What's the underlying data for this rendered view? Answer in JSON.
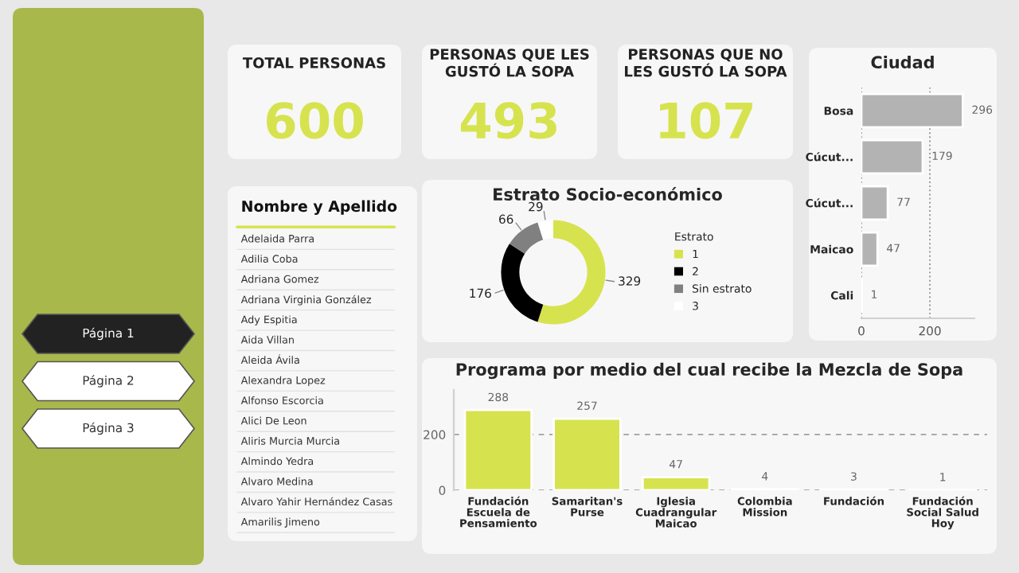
{
  "chart_data": [
    {
      "type": "other",
      "annotations": [
        "Página 1",
        "Página 2",
        "Página 3"
      ]
    },
    {
      "type": "other",
      "title": "TOTAL PERSONAS",
      "annotations": [
        "600"
      ]
    },
    {
      "type": "other",
      "title": "PERSONAS QUE LES GUSTÓ LA SOPA",
      "annotations": [
        "493"
      ]
    },
    {
      "type": "other",
      "title": "PERSONAS QUE NO LES GUSTÓ LA SOPA",
      "annotations": [
        "107"
      ]
    },
    {
      "type": "bar",
      "orientation": "horizontal",
      "title": "Ciudad",
      "categories": [
        "Bosa",
        "Cúcut...",
        "Cúcut...",
        "Maicao",
        "Cali"
      ],
      "values": [
        296,
        179,
        77,
        47,
        1
      ],
      "color": "#b3b3b3",
      "xlim": [
        0,
        330
      ],
      "xticks": [
        0,
        200
      ],
      "grid": "x",
      "data_labels": true
    },
    {
      "type": "other",
      "title": "Nombre y Apellido",
      "annotations": [
        "Adelaida Parra",
        "Adilia Coba",
        "Adriana Gomez",
        "Adriana Virginia González",
        "Ady Espitia",
        "Aida Villan",
        "Aleida Ávila",
        "Alexandra Lopez",
        "Alfonso Escorcia",
        "Alici De Leon",
        "Aliris Murcia Murcia",
        "Almindo Yedra",
        "Alvaro Medina",
        "Alvaro Yahir Hernández Casas",
        "Amarilis Jimeno"
      ]
    },
    {
      "type": "donut",
      "title": "Estrato Socio-económico",
      "legend_title": "Estrato",
      "legend": "right",
      "categories": [
        "1",
        "2",
        "Sin estrato",
        "3"
      ],
      "values": [
        329,
        176,
        66,
        29
      ],
      "colors": [
        "#d6e34e",
        "#000000",
        "#808080",
        "#ffffff"
      ],
      "data_labels": true
    },
    {
      "type": "bar",
      "title": "Programa por medio del cual recibe la Mezcla de Sopa",
      "categories": [
        "Fundación Escuela de Pensamiento",
        "Samaritan's Purse",
        "Iglesia Cuadrangular Maicao",
        "Colombia Mission",
        "Fundación",
        "Fundación Social Salud Hoy"
      ],
      "values": [
        288,
        257,
        47,
        4,
        3,
        1
      ],
      "color": "#d6e34e",
      "ylim": [
        0,
        360
      ],
      "yticks": [
        0,
        200
      ],
      "grid": "y",
      "line_style": "dashed",
      "data_labels": true
    }
  ]
}
